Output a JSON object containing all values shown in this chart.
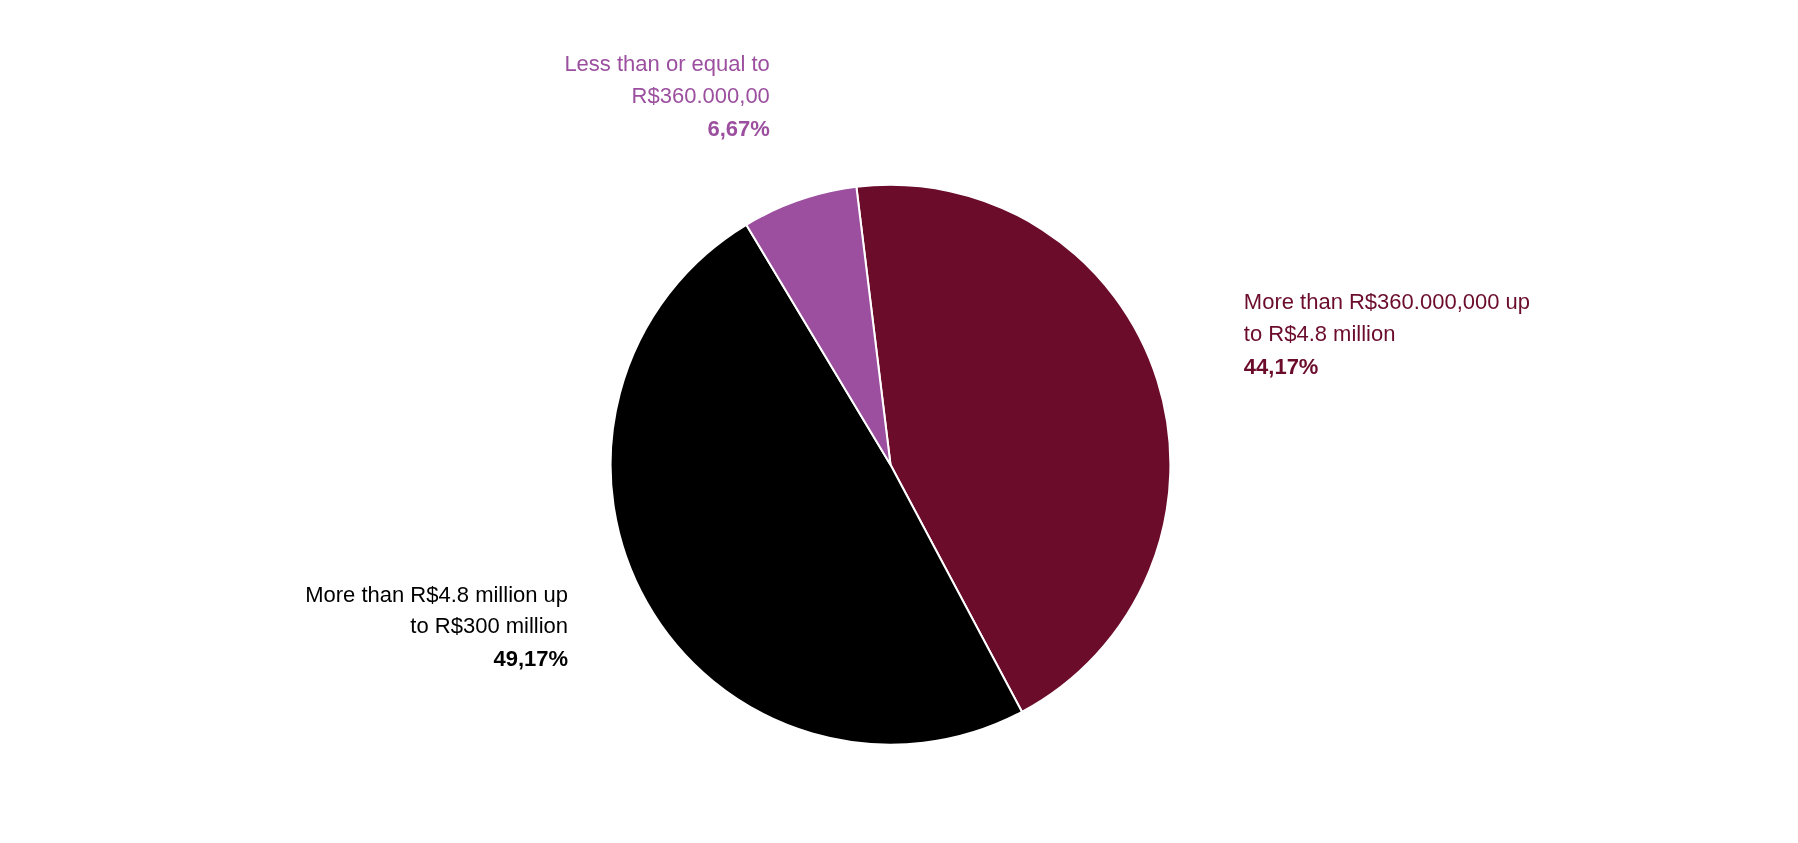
{
  "chart_data": {
    "type": "pie",
    "categories": [
      "Less than or equal to R$360.000,00",
      "More than R$360.000,000 up to R$4.8 million",
      "More than R$4.8 million up to R$300 million"
    ],
    "values": [
      6.67,
      44.17,
      49.17
    ],
    "value_labels": [
      "6,67%",
      "44,17%",
      "49,17%"
    ],
    "colors": [
      "#9b4f9e",
      "#6b0c2b",
      "#000000"
    ],
    "legend": false
  }
}
